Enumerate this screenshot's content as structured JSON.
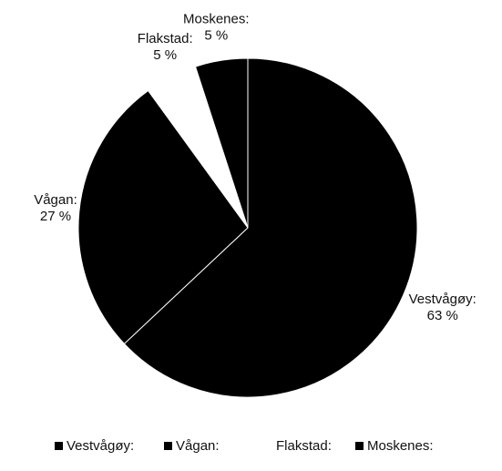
{
  "chart_data": {
    "type": "pie",
    "categories": [
      "Vestvågøy:",
      "Vågan:",
      "Flakstad:",
      "Moskenes:"
    ],
    "values": [
      63,
      27,
      5,
      5
    ],
    "value_labels": [
      "63 %",
      "27 %",
      "5 %",
      "5 %"
    ],
    "colors": [
      "#000000",
      "#000000",
      "#ffffff",
      "#000000"
    ],
    "legend": "bottom"
  }
}
